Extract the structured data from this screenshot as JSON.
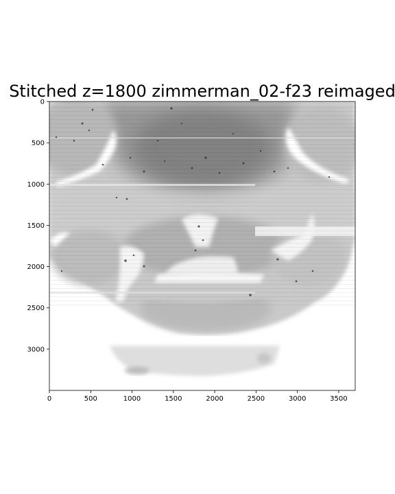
{
  "figure": {
    "title": "Stitched z=1800 zimmerman_02-f23 reimaged"
  },
  "axes": {
    "x_ticks": [
      "0",
      "500",
      "1000",
      "1500",
      "2000",
      "2500",
      "3000",
      "3500"
    ],
    "y_ticks": [
      "0",
      "500",
      "1000",
      "1500",
      "2000",
      "2500",
      "3000"
    ],
    "xlim": [
      0,
      3700
    ],
    "ylim": [
      3500,
      0
    ]
  },
  "image": {
    "colormap": "grayscale",
    "description_kind": "stitched microscopy section"
  }
}
